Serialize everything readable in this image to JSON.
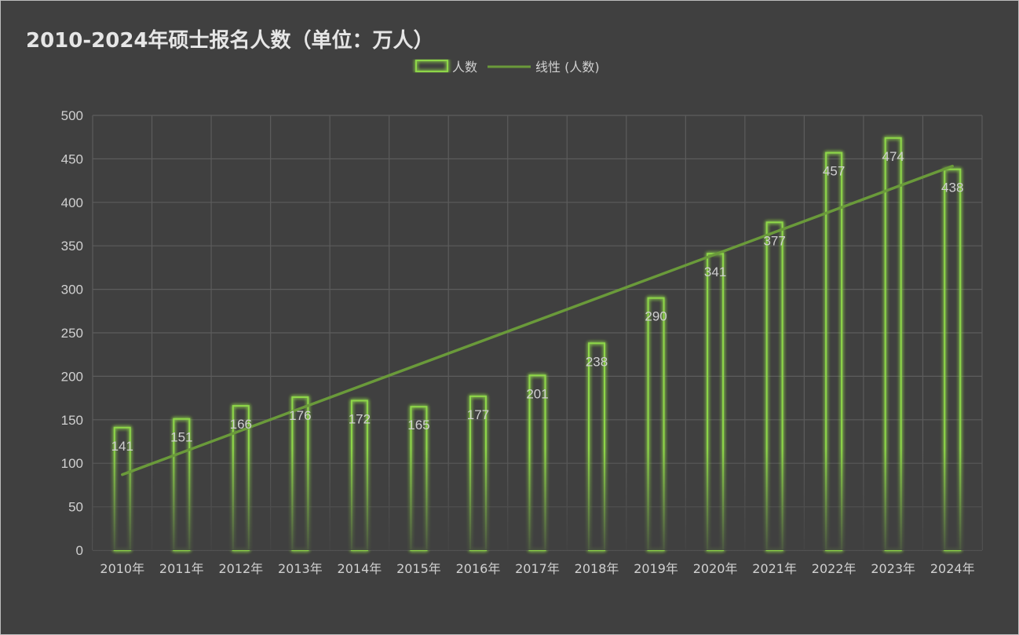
{
  "chart_data": {
    "type": "bar",
    "title": "2010-2024年硕士报名人数（单位：万人）",
    "categories": [
      "2010年",
      "2011年",
      "2012年",
      "2013年",
      "2014年",
      "2015年",
      "2016年",
      "2017年",
      "2018年",
      "2019年",
      "2020年",
      "2021年",
      "2022年",
      "2023年",
      "2024年"
    ],
    "series": [
      {
        "name": "人数",
        "values": [
          141,
          151,
          166,
          176,
          172,
          165,
          177,
          201,
          238,
          290,
          341,
          377,
          457,
          474,
          438
        ]
      }
    ],
    "trendline": {
      "name": "线性 (人数)",
      "type": "linear",
      "of_series": "人数"
    },
    "ylim": [
      0,
      500
    ],
    "yticks": [
      0,
      50,
      100,
      150,
      200,
      250,
      300,
      350,
      400,
      450,
      500
    ],
    "xlabel": "",
    "ylabel": "",
    "grid": true,
    "legend_position": "top",
    "data_labels": true,
    "colors": {
      "background": "#404040",
      "bar_stroke": "#8ed64a",
      "bar_glow": "#7ec83a",
      "trendline": "#6a9a3a",
      "grid": "#5c5c5c",
      "text": "#d0d0d0"
    }
  }
}
